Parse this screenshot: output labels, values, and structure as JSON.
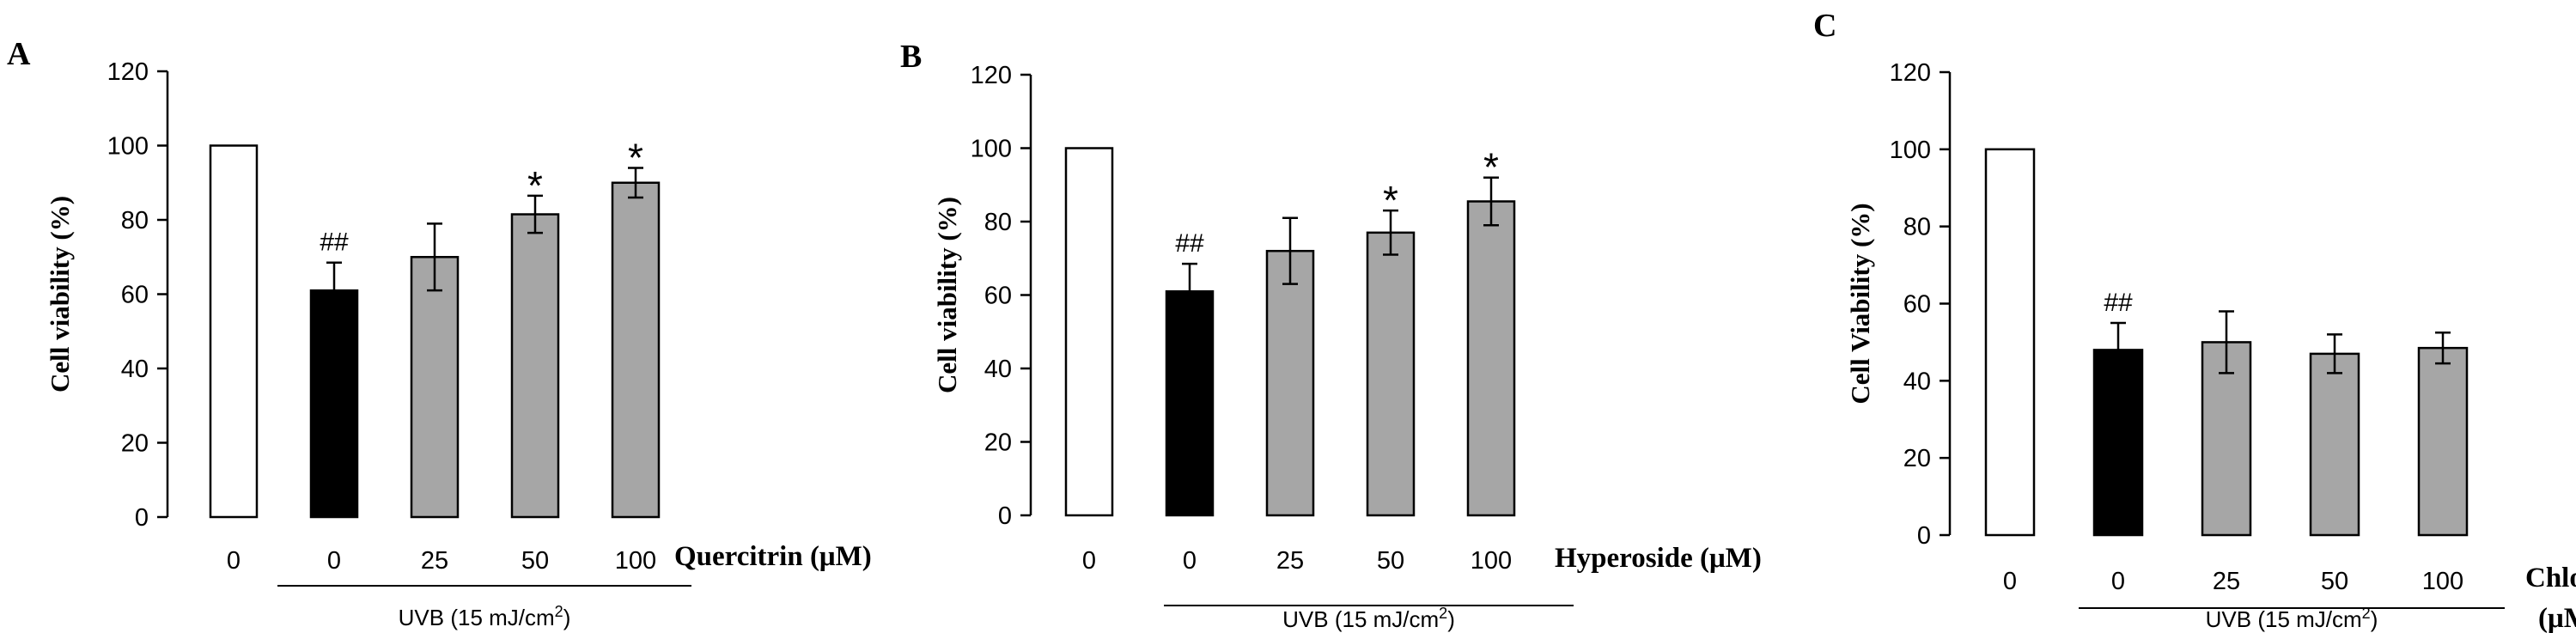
{
  "colors": {
    "white_bar": "#ffffff",
    "black_bar": "#000000",
    "gray_bar": "#a6a6a6"
  },
  "chart_data": [
    {
      "type": "bar",
      "panel": "A",
      "ylabel": "Cell viability (%)",
      "xlabel": "Quercitrin (μM)",
      "group_label": "UVB (15 mJ/cm",
      "group_label_sup": "2",
      "group_label_end": ")",
      "ylim": [
        0,
        120
      ],
      "yticks": [
        "0",
        "20",
        "40",
        "60",
        "80",
        "100",
        "120"
      ],
      "categories": [
        "0",
        "0",
        "25",
        "50",
        "100"
      ],
      "values": [
        100,
        61,
        70,
        81.5,
        90
      ],
      "errors": [
        0,
        7.5,
        9,
        5,
        4
      ],
      "bar_colors": [
        "white",
        "black",
        "gray",
        "gray",
        "gray"
      ],
      "significance": [
        "",
        "##",
        "",
        "*",
        "*"
      ]
    },
    {
      "type": "bar",
      "panel": "B",
      "ylabel": "Cell viability (%)",
      "xlabel": "Hyperoside (μM)",
      "group_label": "UVB (15 mJ/cm",
      "group_label_sup": "2",
      "group_label_end": ")",
      "ylim": [
        0,
        120
      ],
      "yticks": [
        "0",
        "20",
        "40",
        "60",
        "80",
        "100",
        "120"
      ],
      "categories": [
        "0",
        "0",
        "25",
        "50",
        "100"
      ],
      "values": [
        100,
        61,
        72,
        77,
        85.5
      ],
      "errors": [
        0,
        7.5,
        9,
        6,
        6.5
      ],
      "bar_colors": [
        "white",
        "black",
        "gray",
        "gray",
        "gray"
      ],
      "significance": [
        "",
        "##",
        "",
        "*",
        "*"
      ]
    },
    {
      "type": "bar",
      "panel": "C",
      "ylabel": "Cell Viability (%)",
      "xlabel_line1": "Chlorogenic Acid",
      "xlabel_line2": "(μM)",
      "group_label": "UVB (15 mJ/cm",
      "group_label_sup": "2",
      "group_label_end": ")",
      "ylim": [
        0,
        120
      ],
      "yticks": [
        "0",
        "20",
        "40",
        "60",
        "80",
        "100",
        "120"
      ],
      "categories": [
        "0",
        "0",
        "25",
        "50",
        "100"
      ],
      "values": [
        100,
        48,
        50,
        47,
        48.5
      ],
      "errors": [
        0,
        7,
        8,
        5,
        4
      ],
      "bar_colors": [
        "white",
        "black",
        "gray",
        "gray",
        "gray"
      ],
      "significance": [
        "",
        "##",
        "",
        "",
        ""
      ]
    }
  ]
}
